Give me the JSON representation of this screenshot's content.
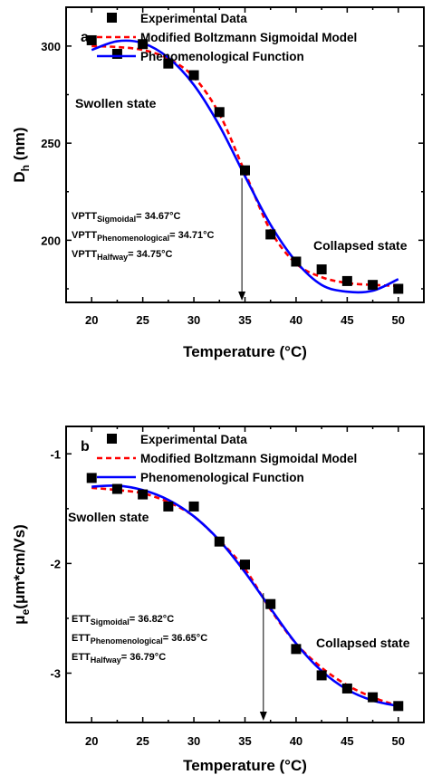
{
  "chart_data": [
    {
      "type": "scatter",
      "panel_label": "a",
      "xlabel": "Temperature (°C)",
      "ylabel": {
        "main": "D",
        "sub": "h",
        "rest": " (nm)"
      },
      "xlim": [
        17.5,
        52.5
      ],
      "ylim": [
        168,
        320
      ],
      "xticks": [
        20,
        25,
        30,
        35,
        40,
        45,
        50
      ],
      "yticks": [
        200,
        250,
        300
      ],
      "legend": {
        "placement": "top",
        "entries": [
          {
            "label": "Experimental Data",
            "style": "square-marker",
            "color": "#000000"
          },
          {
            "label": "Modified Boltzmann Sigmoidal Model",
            "style": "dashed-line",
            "color": "#ff0000"
          },
          {
            "label": "Phenomenological Function",
            "style": "solid-line",
            "color": "#0000ff"
          }
        ]
      },
      "experimental": {
        "x": [
          20,
          22.5,
          25,
          27.5,
          30,
          32.5,
          35,
          37.5,
          40,
          42.5,
          45,
          47.5,
          50
        ],
        "y": [
          303,
          296,
          301,
          291,
          285,
          266,
          236,
          203,
          189,
          185,
          179,
          177,
          175
        ]
      },
      "sigmoidal_curve": {
        "x": [
          20,
          22.5,
          25,
          27.5,
          30,
          32.5,
          35,
          37.5,
          40,
          42.5,
          45,
          47.5,
          50
        ],
        "y": [
          300,
          299.5,
          298,
          293.5,
          284,
          265,
          235,
          205,
          188,
          181,
          178,
          177,
          176.5
        ]
      },
      "phenomenological_curve": {
        "x": [
          20,
          22.5,
          25,
          27.5,
          30,
          32.5,
          35,
          37.5,
          40,
          42.5,
          45,
          47.5,
          50
        ],
        "y": [
          298,
          302.5,
          301.5,
          294,
          280,
          259,
          233,
          208,
          189,
          177,
          173.5,
          174,
          180
        ]
      },
      "transition_x": 34.7,
      "arrow_top_y": 232,
      "annotations": {
        "swollen": "Swollen state",
        "collapsed": "Collapsed state",
        "lines": [
          {
            "main": "VPTT",
            "sub": "Sigmoidal",
            "value": "= 34.67°C"
          },
          {
            "main": "VPTT",
            "sub": "Phenomenological",
            "value": "= 34.71°C"
          },
          {
            "main": "VPTT",
            "sub": "Halfway",
            "value": "= 34.75°C"
          }
        ]
      }
    },
    {
      "type": "scatter",
      "panel_label": "b",
      "xlabel": "Temperature (°C)",
      "ylabel": {
        "main": "μ",
        "sub": "e",
        "rest": "(μm*cm/Vs)"
      },
      "xlim": [
        17.5,
        52.5
      ],
      "ylim": [
        -3.45,
        -0.75
      ],
      "xticks": [
        20,
        25,
        30,
        35,
        40,
        45,
        50
      ],
      "yticks": [
        -1,
        -2,
        -3
      ],
      "legend": {
        "placement": "top",
        "entries": [
          {
            "label": "Experimental Data",
            "style": "square-marker",
            "color": "#000000"
          },
          {
            "label": "Modified Boltzmann Sigmoidal Model",
            "style": "dashed-line",
            "color": "#ff0000"
          },
          {
            "label": "Phenomenological Function",
            "style": "solid-line",
            "color": "#0000ff"
          }
        ]
      },
      "experimental": {
        "x": [
          20,
          22.5,
          25,
          27.5,
          30,
          32.5,
          35,
          37.5,
          40,
          42.5,
          45,
          47.5,
          50
        ],
        "y": [
          -1.22,
          -1.32,
          -1.37,
          -1.48,
          -1.48,
          -1.8,
          -2.01,
          -2.37,
          -2.78,
          -3.02,
          -3.14,
          -3.22,
          -3.3
        ]
      },
      "sigmoidal_curve": {
        "x": [
          20,
          22.5,
          25,
          27.5,
          30,
          32.5,
          35,
          37.5,
          40,
          42.5,
          45,
          47.5,
          50
        ],
        "y": [
          -1.31,
          -1.33,
          -1.36,
          -1.44,
          -1.57,
          -1.79,
          -2.05,
          -2.42,
          -2.73,
          -2.95,
          -3.11,
          -3.22,
          -3.3
        ]
      },
      "phenomenological_curve": {
        "x": [
          20,
          22.5,
          25,
          27.5,
          30,
          32.5,
          35,
          37.5,
          40,
          42.5,
          45,
          47.5,
          50
        ],
        "y": [
          -1.3,
          -1.29,
          -1.33,
          -1.42,
          -1.57,
          -1.79,
          -2.08,
          -2.41,
          -2.73,
          -2.98,
          -3.15,
          -3.25,
          -3.3
        ]
      },
      "transition_x": 36.8,
      "arrow_top_y": -2.27,
      "annotations": {
        "swollen": "Swollen state",
        "collapsed": "Collapsed state",
        "lines": [
          {
            "main": "ETT",
            "sub": "Sigmoidal",
            "value": "= 36.82°C"
          },
          {
            "main": "ETT",
            "sub": "Phenomenological",
            "value": "= 36.65°C"
          },
          {
            "main": "ETT",
            "sub": "Halfway",
            "value": "= 36.79°C"
          }
        ]
      }
    }
  ]
}
